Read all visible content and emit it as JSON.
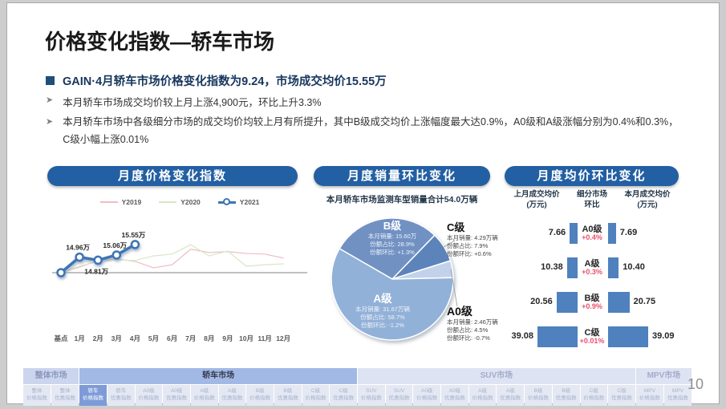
{
  "slide": {
    "title": "价格变化指数—轿车市场",
    "headline": "GAIN·4月轿车市场价格变化指数为9.24，市场成交均价15.55万",
    "bullets": [
      "本月轿车市场成交均价较上月上涨4,900元，环比上升3.3%",
      "本月轿车市场中各级细分市场的成交均价均较上月有所提升，其中B级成交均价上涨幅度最大达0.9%，A0级和A级涨幅分别为0.4%和0.3%，C级小幅上涨0.01%"
    ],
    "page_number": "10"
  },
  "chart_data": [
    {
      "id": "monthly_price_change_index",
      "type": "line",
      "title": "月度价格变化指数",
      "x": [
        "基点",
        "1月",
        "2月",
        "3月",
        "4月",
        "5月",
        "6月",
        "7月",
        "8月",
        "9月",
        "10月",
        "11月",
        "12月"
      ],
      "legend_position": "top",
      "baseline": 0,
      "ylim": [
        -10,
        11
      ],
      "series": [
        {
          "name": "Y2019",
          "color": "#f0bcc4",
          "values": [
            0,
            1.8,
            4.0,
            4.5,
            3.7,
            1.6,
            2.6,
            7.7,
            6.6,
            6.9,
            6.3,
            6.1,
            4.8
          ]
        },
        {
          "name": "Y2020",
          "color": "#d6e7c5",
          "values": [
            0,
            2.1,
            3.7,
            4.2,
            4.0,
            5.5,
            6.1,
            9.2,
            5.5,
            7.1,
            2.1,
            2.6,
            2.9
          ]
        },
        {
          "name": "Y2021",
          "color": "#3e75b5",
          "marker": "circle",
          "values": [
            0,
            5.1,
            4.1,
            5.8,
            9.24
          ],
          "point_labels": [
            "",
            "14.96万",
            "14.81万",
            "15.06万",
            "15.55万"
          ],
          "label_side": [
            "none",
            "above",
            "below",
            "above",
            "above"
          ]
        }
      ]
    },
    {
      "id": "monthly_sales_share",
      "type": "pie",
      "title": "月度销量环比变化",
      "subtitle": "本月轿车市场监测车型销量合计54.0万辆",
      "start_angle_deg": -60,
      "field_labels": {
        "sales": "本月销量:",
        "share": "份额占比:",
        "mom": "份额环比:"
      },
      "slices": [
        {
          "name": "B级",
          "share_pct": 28.9,
          "sales": "15.60万",
          "share": "28.9%",
          "share_mom": "+1.3%",
          "color": "#7191c3",
          "label_inside": true
        },
        {
          "name": "C级",
          "share_pct": 7.9,
          "sales": "4.29万辆",
          "share": "7.9%",
          "share_mom": "+0.6%",
          "color": "#5d84ba",
          "label_inside": false
        },
        {
          "name": "A0级",
          "share_pct": 4.5,
          "sales": "2.46万辆",
          "share": "4.5%",
          "share_mom": "-0.7%",
          "color": "#c1d2ea",
          "label_inside": false
        },
        {
          "name": "A级",
          "share_pct": 58.7,
          "sales": "31.67万辆",
          "share": "58.7%",
          "share_mom": "-1.2%",
          "color": "#92b1d8",
          "label_inside": true
        }
      ]
    },
    {
      "id": "monthly_avg_price_mom",
      "type": "bar",
      "title": "月度均价环比变化",
      "bar_color": "#4e81bd",
      "mom_color": "#e8506e",
      "col_headers": [
        {
          "l1": "上月成交均价",
          "l2": "(万元)"
        },
        {
          "l1": "细分市场",
          "l2": "环比"
        },
        {
          "l1": "本月成交均价",
          "l2": "(万元)"
        }
      ],
      "rows": [
        {
          "segment": "A0级",
          "prev": "7.66",
          "mom": "+0.4%",
          "curr": "7.69"
        },
        {
          "segment": "A级",
          "prev": "10.38",
          "mom": "+0.3%",
          "curr": "10.40"
        },
        {
          "segment": "B级",
          "prev": "20.56",
          "mom": "+0.9%",
          "curr": "20.75"
        },
        {
          "segment": "C级",
          "prev": "39.08",
          "mom": "+0.01%",
          "curr": "39.09"
        }
      ]
    }
  ],
  "bottom_nav": {
    "groups": [
      {
        "label": "整体市场",
        "variant": "overall",
        "items": [
          {
            "seg": "整体",
            "idx": "价格指数"
          },
          {
            "seg": "整体",
            "idx": "优惠指数"
          }
        ]
      },
      {
        "label": "轿车市场",
        "variant": "sedan",
        "items": [
          {
            "seg": "轿车",
            "idx": "价格指数",
            "active": true
          },
          {
            "seg": "轿车",
            "idx": "优惠指数"
          },
          {
            "seg": "A0级",
            "idx": "价格指数"
          },
          {
            "seg": "A0级",
            "idx": "优惠指数"
          },
          {
            "seg": "A级",
            "idx": "价格指数"
          },
          {
            "seg": "A级",
            "idx": "优惠指数"
          },
          {
            "seg": "B级",
            "idx": "价格指数"
          },
          {
            "seg": "B级",
            "idx": "优惠指数"
          },
          {
            "seg": "C级",
            "idx": "价格指数"
          },
          {
            "seg": "C级",
            "idx": "优惠指数"
          }
        ]
      },
      {
        "label": "SUV市场",
        "variant": "other",
        "items": [
          {
            "seg": "SUV",
            "idx": "价格指数"
          },
          {
            "seg": "SUV",
            "idx": "优惠指数"
          },
          {
            "seg": "A0级",
            "idx": "价格指数"
          },
          {
            "seg": "A0级",
            "idx": "优惠指数"
          },
          {
            "seg": "A级",
            "idx": "价格指数"
          },
          {
            "seg": "A级",
            "idx": "优惠指数"
          },
          {
            "seg": "B级",
            "idx": "价格指数"
          },
          {
            "seg": "B级",
            "idx": "优惠指数"
          },
          {
            "seg": "C级",
            "idx": "价格指数"
          },
          {
            "seg": "C级",
            "idx": "优惠指数"
          }
        ]
      },
      {
        "label": "MPV市场",
        "variant": "other",
        "items": [
          {
            "seg": "MPV",
            "idx": "价格指数"
          },
          {
            "seg": "MPV",
            "idx": "优惠指数"
          }
        ]
      }
    ]
  }
}
